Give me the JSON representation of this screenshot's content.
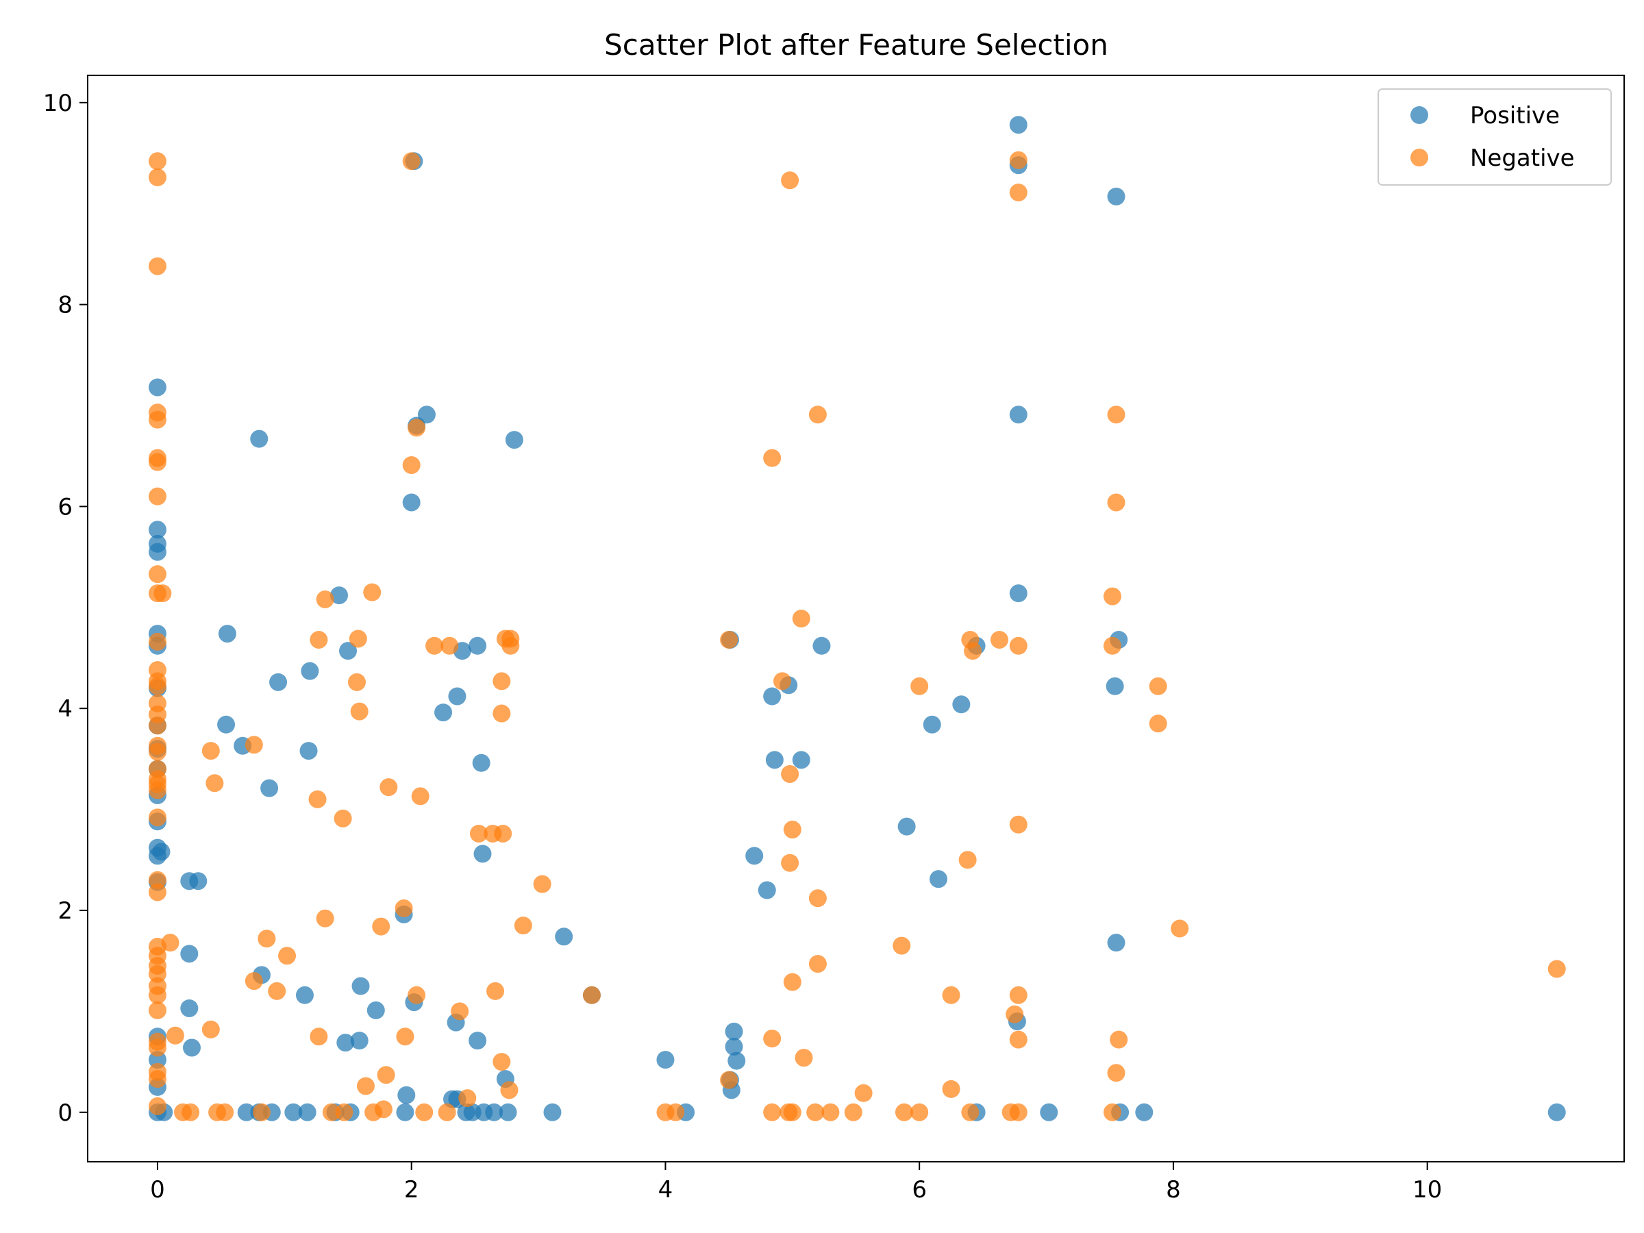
{
  "chart_data": {
    "type": "scatter",
    "title": "Scatter Plot after Feature Selection",
    "xlabel": "",
    "ylabel": "",
    "xlim": [
      -0.55,
      11.55
    ],
    "ylim": [
      -0.49,
      10.27
    ],
    "xticks": [
      0,
      2,
      4,
      6,
      8,
      10
    ],
    "yticks": [
      0,
      2,
      4,
      6,
      8,
      10
    ],
    "grid": false,
    "legend_position": "top-right",
    "series": [
      {
        "name": "Positive",
        "color": "#1f77b4",
        "points": [
          [
            0,
            7.18
          ],
          [
            0,
            5.77
          ],
          [
            0,
            5.63
          ],
          [
            0,
            5.55
          ],
          [
            0,
            4.74
          ],
          [
            0,
            4.62
          ],
          [
            0,
            4.2
          ],
          [
            0,
            3.83
          ],
          [
            0,
            3.6
          ],
          [
            0,
            3.4
          ],
          [
            0,
            3.14
          ],
          [
            0,
            2.88
          ],
          [
            0,
            2.62
          ],
          [
            0,
            2.54
          ],
          [
            0.03,
            2.58
          ],
          [
            0,
            2.28
          ],
          [
            0,
            0.75
          ],
          [
            0,
            0.52
          ],
          [
            0,
            0.25
          ],
          [
            0,
            0
          ],
          [
            0.05,
            0
          ],
          [
            0.25,
            2.29
          ],
          [
            0.32,
            2.29
          ],
          [
            0.25,
            1.57
          ],
          [
            0.25,
            1.03
          ],
          [
            0.27,
            0.64
          ],
          [
            0.55,
            4.74
          ],
          [
            0.54,
            3.84
          ],
          [
            0.67,
            3.63
          ],
          [
            0.8,
            6.67
          ],
          [
            0.88,
            3.21
          ],
          [
            0.95,
            4.26
          ],
          [
            0.82,
            1.36
          ],
          [
            0.7,
            0
          ],
          [
            0.8,
            0
          ],
          [
            0.9,
            0
          ],
          [
            1.07,
            0
          ],
          [
            1.18,
            0
          ],
          [
            1.2,
            4.37
          ],
          [
            1.19,
            3.58
          ],
          [
            1.16,
            1.16
          ],
          [
            1.43,
            5.12
          ],
          [
            1.5,
            4.57
          ],
          [
            1.6,
            1.25
          ],
          [
            1.48,
            0.69
          ],
          [
            1.59,
            0.71
          ],
          [
            1.72,
            1.01
          ],
          [
            1.4,
            0
          ],
          [
            1.52,
            0
          ],
          [
            1.94,
            1.96
          ],
          [
            1.96,
            0.17
          ],
          [
            1.95,
            0
          ],
          [
            2.0,
            6.04
          ],
          [
            2.02,
            9.42
          ],
          [
            2.04,
            6.8
          ],
          [
            2.12,
            6.91
          ],
          [
            2.02,
            1.09
          ],
          [
            2.25,
            3.96
          ],
          [
            2.36,
            4.12
          ],
          [
            2.4,
            4.57
          ],
          [
            2.52,
            4.62
          ],
          [
            2.55,
            3.46
          ],
          [
            2.56,
            2.56
          ],
          [
            2.35,
            0.89
          ],
          [
            2.52,
            0.71
          ],
          [
            2.32,
            0.13
          ],
          [
            2.36,
            0.13
          ],
          [
            2.43,
            0
          ],
          [
            2.48,
            0
          ],
          [
            2.57,
            0
          ],
          [
            2.65,
            0
          ],
          [
            2.76,
            0
          ],
          [
            2.74,
            0.33
          ],
          [
            2.81,
            6.66
          ],
          [
            3.11,
            0
          ],
          [
            3.2,
            1.74
          ],
          [
            3.42,
            1.16
          ],
          [
            4.0,
            0.52
          ],
          [
            4.16,
            0
          ],
          [
            4.51,
            4.68
          ],
          [
            4.51,
            0.32
          ],
          [
            4.52,
            0.22
          ],
          [
            4.7,
            2.54
          ],
          [
            4.54,
            0.8
          ],
          [
            4.54,
            0.65
          ],
          [
            4.56,
            0.51
          ],
          [
            4.8,
            2.2
          ],
          [
            4.84,
            4.12
          ],
          [
            4.86,
            3.49
          ],
          [
            4.97,
            4.23
          ],
          [
            5.07,
            3.49
          ],
          [
            5.23,
            4.62
          ],
          [
            5.9,
            2.83
          ],
          [
            6.1,
            3.84
          ],
          [
            6.15,
            2.31
          ],
          [
            6.33,
            4.04
          ],
          [
            6.45,
            4.62
          ],
          [
            6.45,
            0
          ],
          [
            6.78,
            9.78
          ],
          [
            6.78,
            9.38
          ],
          [
            6.78,
            6.91
          ],
          [
            6.78,
            5.14
          ],
          [
            6.77,
            0.9
          ],
          [
            7.02,
            0
          ],
          [
            7.55,
            9.07
          ],
          [
            7.57,
            4.68
          ],
          [
            7.54,
            4.22
          ],
          [
            7.55,
            1.68
          ],
          [
            7.58,
            0
          ],
          [
            7.77,
            0
          ],
          [
            11.02,
            0
          ]
        ]
      },
      {
        "name": "Negative",
        "color": "#ff7f0e",
        "points": [
          [
            0,
            9.42
          ],
          [
            0,
            9.26
          ],
          [
            0,
            8.38
          ],
          [
            0,
            6.93
          ],
          [
            0,
            6.86
          ],
          [
            0,
            6.48
          ],
          [
            0,
            6.44
          ],
          [
            0,
            6.1
          ],
          [
            0,
            5.33
          ],
          [
            0,
            5.14
          ],
          [
            0.04,
            5.14
          ],
          [
            0,
            4.66
          ],
          [
            0,
            4.38
          ],
          [
            0,
            4.27
          ],
          [
            0,
            4.22
          ],
          [
            0,
            4.05
          ],
          [
            0,
            3.94
          ],
          [
            0,
            3.83
          ],
          [
            0,
            3.63
          ],
          [
            0,
            3.57
          ],
          [
            0,
            3.4
          ],
          [
            0,
            3.3
          ],
          [
            0,
            3.25
          ],
          [
            0,
            3.19
          ],
          [
            0,
            2.92
          ],
          [
            0,
            2.3
          ],
          [
            0,
            2.18
          ],
          [
            0,
            1.64
          ],
          [
            0,
            1.55
          ],
          [
            0,
            1.45
          ],
          [
            0,
            1.37
          ],
          [
            0,
            1.25
          ],
          [
            0,
            1.16
          ],
          [
            0,
            1.01
          ],
          [
            0,
            0.7
          ],
          [
            0,
            0.64
          ],
          [
            0,
            0.4
          ],
          [
            0,
            0.33
          ],
          [
            0,
            0.06
          ],
          [
            0.1,
            1.68
          ],
          [
            0.14,
            0.76
          ],
          [
            0.2,
            0
          ],
          [
            0.26,
            0
          ],
          [
            0.42,
            3.58
          ],
          [
            0.45,
            3.26
          ],
          [
            0.42,
            0.82
          ],
          [
            0.47,
            0
          ],
          [
            0.53,
            0
          ],
          [
            0.76,
            3.64
          ],
          [
            0.76,
            1.3
          ],
          [
            0.86,
            1.72
          ],
          [
            0.94,
            1.2
          ],
          [
            1.02,
            1.55
          ],
          [
            0.82,
            0
          ],
          [
            1.32,
            5.08
          ],
          [
            1.27,
            4.68
          ],
          [
            1.26,
            3.1
          ],
          [
            1.32,
            1.92
          ],
          [
            1.27,
            0.75
          ],
          [
            1.37,
            0
          ],
          [
            1.47,
            0
          ],
          [
            1.58,
            4.69
          ],
          [
            1.57,
            4.26
          ],
          [
            1.59,
            3.97
          ],
          [
            1.46,
            2.91
          ],
          [
            1.69,
            5.15
          ],
          [
            1.82,
            3.22
          ],
          [
            1.76,
            1.84
          ],
          [
            1.94,
            2.02
          ],
          [
            1.64,
            0.26
          ],
          [
            1.8,
            0.37
          ],
          [
            1.95,
            0.75
          ],
          [
            1.7,
            0
          ],
          [
            1.78,
            0.03
          ],
          [
            2.0,
            9.42
          ],
          [
            2.0,
            6.41
          ],
          [
            2.04,
            6.78
          ],
          [
            2.07,
            3.13
          ],
          [
            2.04,
            1.16
          ],
          [
            2.1,
            0
          ],
          [
            2.18,
            4.62
          ],
          [
            2.3,
            4.62
          ],
          [
            2.38,
            1.0
          ],
          [
            2.28,
            0
          ],
          [
            2.44,
            0.14
          ],
          [
            2.53,
            2.76
          ],
          [
            2.64,
            2.76
          ],
          [
            2.72,
            2.76
          ],
          [
            2.71,
            4.27
          ],
          [
            2.71,
            3.95
          ],
          [
            2.74,
            4.69
          ],
          [
            2.78,
            4.69
          ],
          [
            2.78,
            4.62
          ],
          [
            2.66,
            1.2
          ],
          [
            2.71,
            0.5
          ],
          [
            2.77,
            0.22
          ],
          [
            3.03,
            2.26
          ],
          [
            2.88,
            1.85
          ],
          [
            3.42,
            1.16
          ],
          [
            4.0,
            0
          ],
          [
            4.08,
            0
          ],
          [
            4.5,
            4.68
          ],
          [
            4.5,
            0.32
          ],
          [
            4.84,
            6.48
          ],
          [
            4.84,
            0.73
          ],
          [
            4.84,
            0
          ],
          [
            4.92,
            4.27
          ],
          [
            4.98,
            3.35
          ],
          [
            5.0,
            2.8
          ],
          [
            4.98,
            2.47
          ],
          [
            5.0,
            1.29
          ],
          [
            4.97,
            0
          ],
          [
            5.0,
            0
          ],
          [
            4.98,
            9.23
          ],
          [
            5.07,
            4.89
          ],
          [
            5.09,
            0.54
          ],
          [
            5.2,
            6.91
          ],
          [
            5.2,
            2.12
          ],
          [
            5.2,
            1.47
          ],
          [
            5.18,
            0
          ],
          [
            5.3,
            0
          ],
          [
            5.48,
            0
          ],
          [
            5.56,
            0.19
          ],
          [
            5.86,
            1.65
          ],
          [
            5.88,
            0
          ],
          [
            6.0,
            4.22
          ],
          [
            6.0,
            0
          ],
          [
            6.25,
            1.16
          ],
          [
            6.25,
            0.23
          ],
          [
            6.38,
            2.5
          ],
          [
            6.4,
            4.68
          ],
          [
            6.42,
            4.57
          ],
          [
            6.4,
            0
          ],
          [
            6.63,
            4.68
          ],
          [
            6.72,
            0
          ],
          [
            6.75,
            0.97
          ],
          [
            6.78,
            9.43
          ],
          [
            6.78,
            9.11
          ],
          [
            6.78,
            4.62
          ],
          [
            6.78,
            2.85
          ],
          [
            6.78,
            1.16
          ],
          [
            6.78,
            0.72
          ],
          [
            6.78,
            0
          ],
          [
            7.52,
            5.11
          ],
          [
            7.52,
            4.62
          ],
          [
            7.55,
            6.91
          ],
          [
            7.55,
            6.04
          ],
          [
            7.55,
            0.39
          ],
          [
            7.57,
            0.72
          ],
          [
            7.52,
            0
          ],
          [
            7.88,
            4.22
          ],
          [
            7.88,
            3.85
          ],
          [
            8.05,
            1.82
          ],
          [
            11.02,
            1.42
          ]
        ]
      }
    ]
  }
}
